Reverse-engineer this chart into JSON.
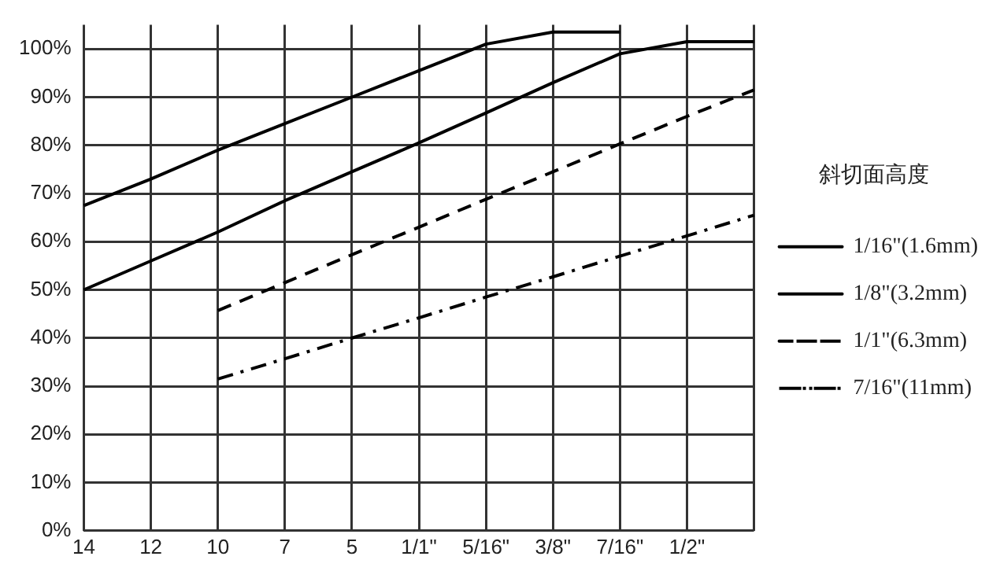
{
  "chart_data": {
    "type": "line",
    "legend_title": "斜切面高度",
    "legend": "right",
    "grid": true,
    "marker": "none",
    "categories": [
      "14",
      "12",
      "10",
      "7",
      "5",
      "1/1\"",
      "5/16\"",
      "3/8\"",
      "7/16\"",
      "1/2\"",
      null
    ],
    "ylim": [
      0,
      105
    ],
    "yticks": [
      {
        "value": 0,
        "label": "0%"
      },
      {
        "value": 10,
        "label": "10%"
      },
      {
        "value": 20,
        "label": "20%"
      },
      {
        "value": 30,
        "label": "30%"
      },
      {
        "value": 40,
        "label": "40%"
      },
      {
        "value": 50,
        "label": "50%"
      },
      {
        "value": 60,
        "label": "60%"
      },
      {
        "value": 70,
        "label": "70%"
      },
      {
        "value": 80,
        "label": "80%"
      },
      {
        "value": 90,
        "label": "90%"
      },
      {
        "value": 100,
        "label": "100%"
      }
    ],
    "series": [
      {
        "name": "1/16\"(1.6mm)",
        "color": "#000000",
        "line_style": "solid",
        "values": [
          67.5,
          73,
          79,
          84.5,
          90,
          95.5,
          101,
          103.5,
          103.5,
          null,
          null
        ]
      },
      {
        "name": "1/8\"(3.2mm)",
        "color": "#000000",
        "line_style": "solid",
        "values": [
          50,
          56,
          62,
          68.5,
          74.5,
          80.5,
          86.7,
          93,
          99,
          101.5,
          101.5
        ]
      },
      {
        "name": "1/1\"(6.3mm)",
        "color": "#000000",
        "line_style": "dashed",
        "values": [
          null,
          null,
          45.7,
          51.5,
          57.3,
          63,
          68.8,
          74.5,
          80.3,
          86,
          91.5
        ]
      },
      {
        "name": "7/16\"(11mm)",
        "color": "#000000",
        "line_style": "dashdot",
        "values": [
          null,
          null,
          31.5,
          35.7,
          40,
          44.2,
          48.5,
          52.7,
          57,
          61.2,
          65.5
        ]
      }
    ]
  }
}
